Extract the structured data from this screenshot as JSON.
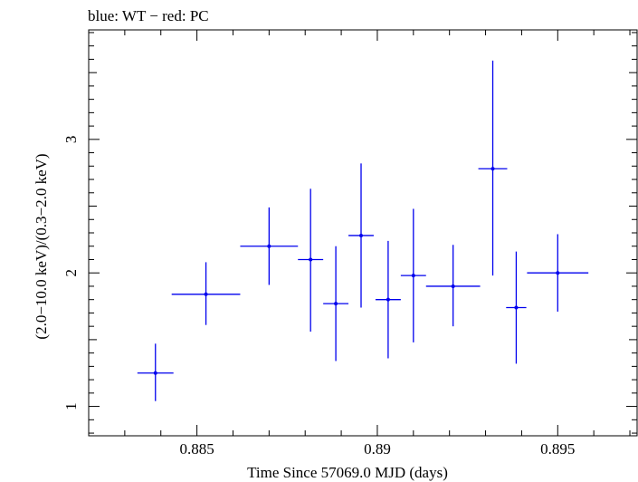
{
  "chart_data": {
    "type": "scatter",
    "title": "blue: WT − red: PC",
    "xlabel": "Time Since 57069.0 MJD (days)",
    "ylabel": "(2.0−10.0 keV)/(0.3−2.0 keV)",
    "xlim": [
      0.882,
      0.8972
    ],
    "ylim": [
      0.78,
      3.82
    ],
    "x_ticks": [
      0.885,
      0.89,
      0.895
    ],
    "x_tick_labels": [
      "0.885",
      "0.89",
      "0.895"
    ],
    "y_ticks": [
      1,
      2,
      3
    ],
    "y_tick_labels": [
      "1",
      "2",
      "3"
    ],
    "grid": false,
    "series": [
      {
        "color": "#0000ee",
        "points": [
          {
            "x": 0.88385,
            "xerr": 0.0005,
            "y": 1.25,
            "yerr_low": 0.21,
            "yerr_high": 0.22
          },
          {
            "x": 0.88525,
            "xerr": 0.00095,
            "y": 1.84,
            "yerr_low": 0.23,
            "yerr_high": 0.24
          },
          {
            "x": 0.887,
            "xerr": 0.0008,
            "y": 2.2,
            "yerr_low": 0.29,
            "yerr_high": 0.29
          },
          {
            "x": 0.88815,
            "xerr": 0.00035,
            "y": 2.1,
            "yerr_low": 0.54,
            "yerr_high": 0.53
          },
          {
            "x": 0.88885,
            "xerr": 0.00035,
            "y": 1.77,
            "yerr_low": 0.43,
            "yerr_high": 0.43
          },
          {
            "x": 0.88955,
            "xerr": 0.00035,
            "y": 2.28,
            "yerr_low": 0.54,
            "yerr_high": 0.54
          },
          {
            "x": 0.8903,
            "xerr": 0.00035,
            "y": 1.8,
            "yerr_low": 0.44,
            "yerr_high": 0.44
          },
          {
            "x": 0.891,
            "xerr": 0.00035,
            "y": 1.98,
            "yerr_low": 0.5,
            "yerr_high": 0.5
          },
          {
            "x": 0.8921,
            "xerr": 0.00075,
            "y": 1.9,
            "yerr_low": 0.3,
            "yerr_high": 0.31
          },
          {
            "x": 0.8932,
            "xerr": 0.0004,
            "y": 2.78,
            "yerr_low": 0.8,
            "yerr_high": 0.81
          },
          {
            "x": 0.89385,
            "xerr": 0.00028,
            "y": 1.74,
            "yerr_low": 0.42,
            "yerr_high": 0.42
          },
          {
            "x": 0.895,
            "xerr": 0.00085,
            "y": 2.0,
            "yerr_low": 0.29,
            "yerr_high": 0.29
          }
        ]
      }
    ]
  }
}
